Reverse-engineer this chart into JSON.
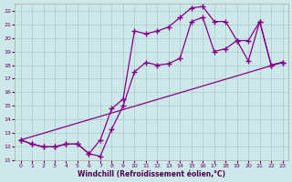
{
  "xlabel": "Windchill (Refroidissement éolien,°C)",
  "background_color": "#cce8e8",
  "grid_color": "#aacccc",
  "line_color": "#880088",
  "marker": "+",
  "markersize": 4,
  "linewidth": 0.9,
  "xlim": [
    -0.5,
    23.5
  ],
  "ylim": [
    11,
    22.5
  ],
  "xticks": [
    0,
    1,
    2,
    3,
    4,
    5,
    6,
    7,
    8,
    9,
    10,
    11,
    12,
    13,
    14,
    15,
    16,
    17,
    18,
    19,
    20,
    21,
    22,
    23
  ],
  "yticks": [
    11,
    12,
    13,
    14,
    15,
    16,
    17,
    18,
    19,
    20,
    21,
    22
  ],
  "series": [
    {
      "x": [
        0,
        1,
        2,
        3,
        4,
        5,
        6,
        7,
        8,
        9,
        10,
        11,
        12,
        13,
        14,
        15,
        16,
        17,
        18,
        19,
        20,
        21,
        22,
        23
      ],
      "y": [
        12.5,
        12.2,
        12.0,
        12.0,
        12.2,
        12.2,
        11.5,
        11.3,
        13.3,
        15.0,
        17.5,
        18.2,
        18.0,
        18.1,
        18.5,
        21.2,
        21.5,
        19.0,
        19.2,
        19.8,
        19.8,
        21.2,
        18.0,
        18.2
      ]
    },
    {
      "x": [
        0,
        1,
        2,
        3,
        4,
        5,
        6,
        7,
        8,
        9,
        10,
        11,
        12,
        13,
        14,
        15,
        16,
        17,
        18,
        19,
        20,
        21,
        22,
        23
      ],
      "y": [
        12.5,
        12.2,
        12.0,
        12.0,
        12.2,
        12.2,
        11.5,
        12.5,
        14.8,
        15.5,
        20.5,
        20.3,
        20.5,
        20.8,
        21.5,
        22.2,
        22.3,
        21.2,
        21.2,
        19.8,
        18.3,
        21.2,
        18.0,
        18.2
      ]
    },
    {
      "x": [
        0,
        23
      ],
      "y": [
        12.5,
        18.2
      ]
    }
  ]
}
